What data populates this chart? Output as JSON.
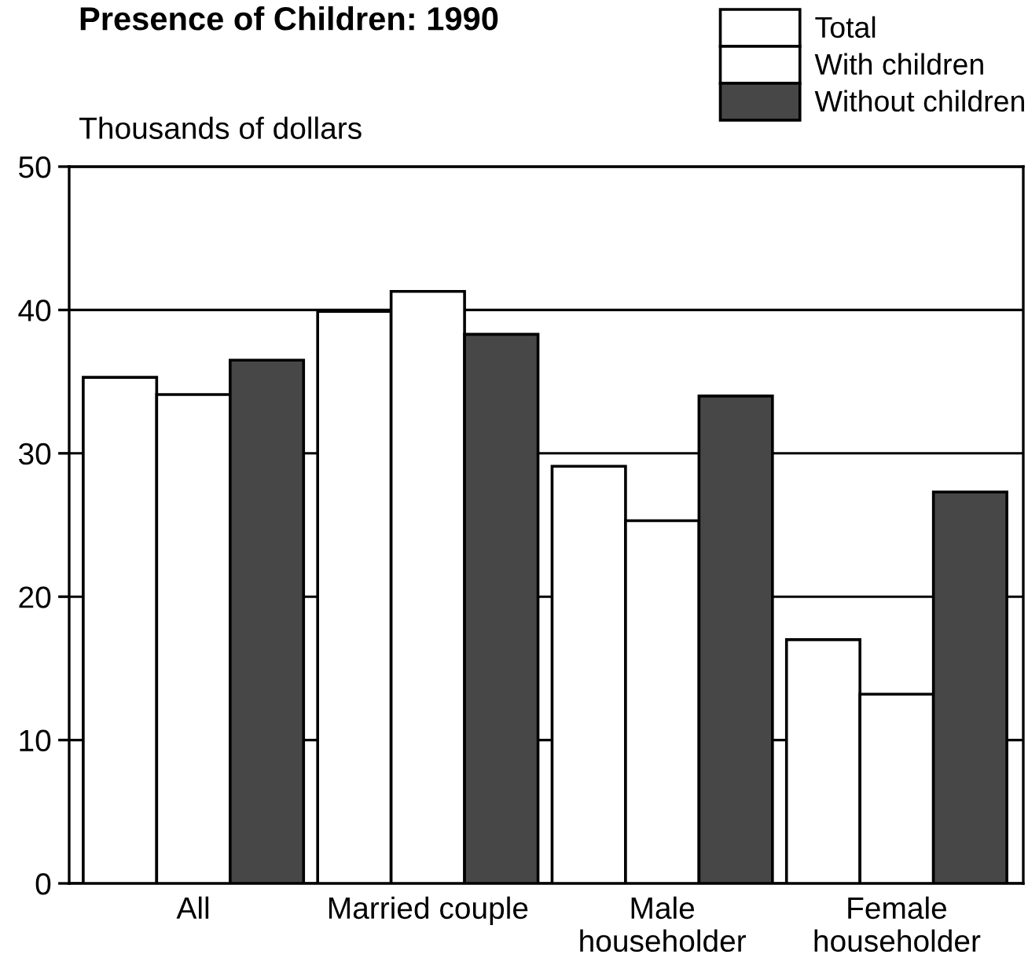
{
  "chart_data": {
    "type": "bar",
    "title": "Presence of Children: 1990",
    "ylabel": "Thousands of dollars",
    "categories": [
      "All",
      "Married couple",
      "Male\nhouseholder",
      "Female\nhouseholder"
    ],
    "series": [
      {
        "name": "Total",
        "color": "#ffffff",
        "values": [
          35.3,
          39.9,
          29.1,
          17.0
        ]
      },
      {
        "name": "With children",
        "color": "#ffffff",
        "values": [
          34.1,
          41.3,
          25.3,
          13.2
        ]
      },
      {
        "name": "Without children",
        "color": "#474747",
        "values": [
          36.5,
          38.3,
          34.0,
          27.3
        ]
      }
    ],
    "ylim": [
      0,
      50
    ],
    "yticks": [
      0,
      10,
      20,
      30,
      40,
      50
    ],
    "grid": "y",
    "legend": "top right"
  }
}
